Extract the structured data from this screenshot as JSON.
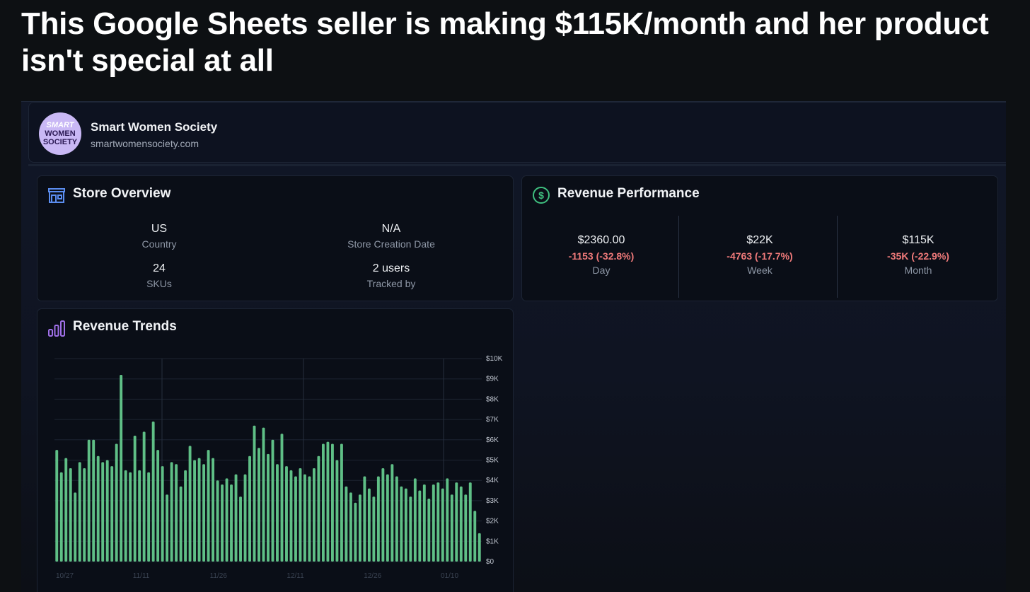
{
  "headline": "This Google Sheets seller is making $115K/month and her product isn't special at all",
  "store": {
    "name": "Smart Women Society",
    "url": "smartwomensociety.com",
    "logo_lines": [
      "SMART",
      "WOMEN",
      "SOCIETY"
    ]
  },
  "overview": {
    "title": "Store Overview",
    "icon": "storefront-icon",
    "fields": [
      {
        "value": "US",
        "label": "Country"
      },
      {
        "value": "N/A",
        "label": "Store Creation Date"
      },
      {
        "value": "24",
        "label": "SKUs"
      },
      {
        "value": "2 users",
        "label": "Tracked by"
      }
    ]
  },
  "revenue": {
    "title": "Revenue Performance",
    "icon": "dollar-circle-icon",
    "periods": [
      {
        "value": "$2360.00",
        "delta": "-1153 (-32.8%)",
        "label": "Day"
      },
      {
        "value": "$22K",
        "delta": "-4763 (-17.7%)",
        "label": "Week"
      },
      {
        "value": "$115K",
        "delta": "-35K (-22.9%)",
        "label": "Month"
      }
    ]
  },
  "colors": {
    "bar": "#5fbf86",
    "negative": "#f07a7a",
    "accent_green": "#3fbf7f",
    "accent_purple": "#a070e8",
    "accent_blue": "#5b8def"
  },
  "chart_data": {
    "type": "bar",
    "title": "Revenue Trends",
    "icon": "bar-chart-icon",
    "ylim": [
      0,
      10000
    ],
    "yticks": [
      "$0",
      "$1K",
      "$2K",
      "$3K",
      "$4K",
      "$5K",
      "$6K",
      "$7K",
      "$8K",
      "$9K",
      "$10K"
    ],
    "xticks": [
      "10/27",
      "11/11",
      "11/26",
      "12/11",
      "12/26",
      "01/10"
    ],
    "xlabel": "",
    "ylabel": "",
    "values": [
      5500,
      4400,
      5100,
      4600,
      3400,
      4900,
      4600,
      6000,
      6000,
      5200,
      4900,
      5000,
      4700,
      5800,
      9200,
      4500,
      4400,
      6200,
      4500,
      6400,
      4400,
      6900,
      5500,
      4700,
      3300,
      4900,
      4800,
      3700,
      4500,
      5700,
      5000,
      5100,
      4800,
      5500,
      5100,
      4000,
      3800,
      4100,
      3800,
      4300,
      3200,
      4300,
      5200,
      6700,
      5600,
      6600,
      5300,
      6000,
      4800,
      6300,
      4700,
      4500,
      4200,
      4600,
      4300,
      4200,
      4600,
      5200,
      5800,
      5900,
      5800,
      5000,
      5800,
      3700,
      3400,
      2900,
      3300,
      4200,
      3600,
      3200,
      4200,
      4600,
      4300,
      4800,
      4200,
      3700,
      3600,
      3200,
      4100,
      3500,
      3800,
      3100,
      3800,
      3900,
      3600,
      4100,
      3300,
      3900,
      3700,
      3300,
      3900,
      2500,
      1400
    ]
  }
}
